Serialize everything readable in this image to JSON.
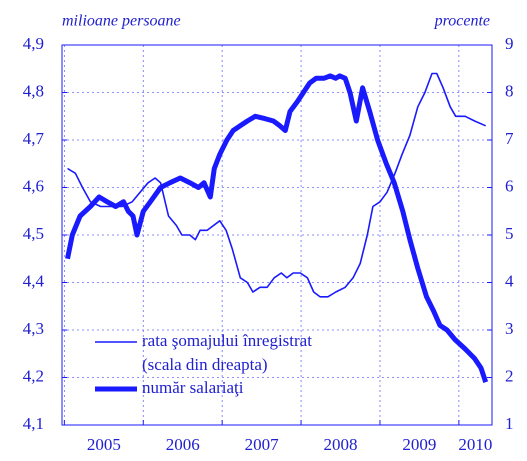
{
  "chart_data": {
    "type": "line",
    "y_label": "milioane persoane",
    "y2_label": "procente",
    "xlim": [
      2004.97,
      2010.42
    ],
    "xticks": [
      {
        "value": 2005,
        "label": "2005"
      },
      {
        "value": 2006,
        "label": "2006"
      },
      {
        "value": 2007,
        "label": "2007"
      },
      {
        "value": 2008,
        "label": "2008"
      },
      {
        "value": 2009,
        "label": "2009"
      },
      {
        "value": 2010,
        "label": "2010"
      }
    ],
    "ylim": [
      4.1,
      4.9
    ],
    "yticks": [
      {
        "value": 4.1,
        "label": "4,1"
      },
      {
        "value": 4.2,
        "label": "4,2"
      },
      {
        "value": 4.3,
        "label": "4,3"
      },
      {
        "value": 4.4,
        "label": "4,4"
      },
      {
        "value": 4.5,
        "label": "4,5"
      },
      {
        "value": 4.6,
        "label": "4,6"
      },
      {
        "value": 4.7,
        "label": "4,7"
      },
      {
        "value": 4.8,
        "label": "4,8"
      },
      {
        "value": 4.9,
        "label": "4,9"
      }
    ],
    "y2lim": [
      1,
      9
    ],
    "y2ticks": [
      1,
      2,
      3,
      4,
      5,
      6,
      7,
      8,
      9
    ],
    "grid": true,
    "legend_note": "(scala din dreapta)",
    "series": [
      {
        "name": "rata şomajului înregistrat",
        "color": "#1a1aff",
        "axis": "y2",
        "width": 1.6,
        "x": [
          2005.04,
          2005.14,
          2005.23,
          2005.33,
          2005.46,
          2005.61,
          2005.73,
          2005.86,
          2005.96,
          2006.06,
          2006.15,
          2006.22,
          2006.32,
          2006.42,
          2006.49,
          2006.59,
          2006.66,
          2006.72,
          2006.81,
          2006.89,
          2006.97,
          2007.05,
          2007.13,
          2007.23,
          2007.32,
          2007.39,
          2007.48,
          2007.57,
          2007.66,
          2007.75,
          2007.82,
          2007.9,
          2007.99,
          2008.08,
          2008.16,
          2008.24,
          2008.34,
          2008.44,
          2008.56,
          2008.66,
          2008.75,
          2008.84,
          2008.91,
          2009.0,
          2009.09,
          2009.19,
          2009.28,
          2009.38,
          2009.48,
          2009.57,
          2009.66,
          2009.72,
          2009.8,
          2009.89,
          2009.96,
          2010.08,
          2010.2,
          2010.34
        ],
        "values": [
          6.4,
          6.3,
          6.0,
          5.7,
          5.6,
          5.6,
          5.6,
          5.7,
          5.9,
          6.1,
          6.2,
          6.1,
          5.4,
          5.2,
          5.0,
          5.0,
          4.9,
          5.1,
          5.1,
          5.2,
          5.3,
          5.1,
          4.7,
          4.1,
          4.0,
          3.8,
          3.9,
          3.9,
          4.1,
          4.2,
          4.1,
          4.2,
          4.2,
          4.1,
          3.8,
          3.7,
          3.7,
          3.8,
          3.9,
          4.1,
          4.4,
          5.0,
          5.6,
          5.7,
          5.9,
          6.3,
          6.7,
          7.1,
          7.7,
          8.0,
          8.4,
          8.4,
          8.1,
          7.7,
          7.5,
          7.5,
          7.4,
          7.3
        ]
      },
      {
        "name": "număr salariaţi",
        "color": "#1a1aff",
        "width": 5,
        "x": [
          2005.04,
          2005.1,
          2005.2,
          2005.33,
          2005.44,
          2005.54,
          2005.65,
          2005.75,
          2005.81,
          2005.87,
          2005.92,
          2006.0,
          2006.09,
          2006.22,
          2006.34,
          2006.47,
          2006.59,
          2006.7,
          2006.77,
          2006.85,
          2006.9,
          2006.97,
          2007.06,
          2007.14,
          2007.23,
          2007.32,
          2007.42,
          2007.54,
          2007.65,
          2007.73,
          2007.8,
          2007.86,
          2007.95,
          2008.03,
          2008.11,
          2008.19,
          2008.29,
          2008.37,
          2008.44,
          2008.49,
          2008.56,
          2008.62,
          2008.7,
          2008.78,
          2008.87,
          2008.97,
          2009.08,
          2009.18,
          2009.29,
          2009.38,
          2009.48,
          2009.59,
          2009.68,
          2009.76,
          2009.85,
          2009.95,
          2010.08,
          2010.2,
          2010.28,
          2010.34
        ],
        "values": [
          4.45,
          4.5,
          4.54,
          4.56,
          4.58,
          4.57,
          4.56,
          4.57,
          4.55,
          4.54,
          4.5,
          4.55,
          4.57,
          4.6,
          4.61,
          4.62,
          4.61,
          4.6,
          4.61,
          4.58,
          4.64,
          4.67,
          4.7,
          4.72,
          4.73,
          4.74,
          4.75,
          4.745,
          4.74,
          4.73,
          4.72,
          4.76,
          4.78,
          4.8,
          4.82,
          4.83,
          4.83,
          4.835,
          4.83,
          4.835,
          4.83,
          4.8,
          4.74,
          4.81,
          4.76,
          4.7,
          4.65,
          4.61,
          4.55,
          4.49,
          4.43,
          4.37,
          4.34,
          4.31,
          4.3,
          4.28,
          4.26,
          4.24,
          4.22,
          4.19
        ]
      }
    ]
  }
}
